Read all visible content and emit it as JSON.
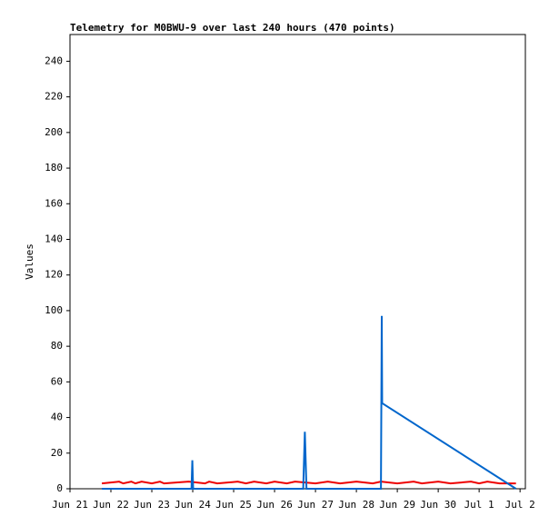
{
  "chart_data": {
    "type": "line",
    "title": "Telemetry for M0BWU-9 over last 240 hours (470 points)",
    "y_label": "Values",
    "xlim": [
      0,
      11.13
    ],
    "xticks": [
      {
        "value": 0,
        "label": "Jun 21"
      },
      {
        "value": 1,
        "label": "Jun 22"
      },
      {
        "value": 2,
        "label": "Jun 23"
      },
      {
        "value": 3,
        "label": "Jun 24"
      },
      {
        "value": 4,
        "label": "Jun 25"
      },
      {
        "value": 5,
        "label": "Jun 26"
      },
      {
        "value": 6,
        "label": "Jun 27"
      },
      {
        "value": 7,
        "label": "Jun 28"
      },
      {
        "value": 8,
        "label": "Jun 29"
      },
      {
        "value": 9,
        "label": "Jun 30"
      },
      {
        "value": 10,
        "label": "Jul 1"
      },
      {
        "value": 11,
        "label": "Jul 2"
      }
    ],
    "ylim": [
      0,
      255
    ],
    "yticks": [
      0,
      20,
      40,
      60,
      80,
      100,
      120,
      140,
      160,
      180,
      200,
      220,
      240
    ],
    "series": [
      {
        "color": "#ee0000",
        "x": [
          0.78,
          1.2,
          1.3,
          1.5,
          1.6,
          1.75,
          2.0,
          2.2,
          2.3,
          2.9,
          3.3,
          3.4,
          3.6,
          4.1,
          4.3,
          4.5,
          4.8,
          5.0,
          5.3,
          5.5,
          6.0,
          6.3,
          6.6,
          7.0,
          7.4,
          7.6,
          8.0,
          8.4,
          8.6,
          9.0,
          9.3,
          9.8,
          10.0,
          10.2,
          10.5,
          10.9
        ],
        "values": [
          3,
          4,
          3,
          4,
          3,
          4,
          3,
          4,
          3,
          4,
          3,
          4,
          3,
          4,
          3,
          4,
          3,
          4,
          3,
          4,
          3,
          4,
          3,
          4,
          3,
          4,
          3,
          4,
          3,
          4,
          3,
          4,
          3,
          4,
          3,
          3
        ]
      },
      {
        "color": "#0066cc",
        "x": [
          0.78,
          2.97,
          2.98,
          2.99,
          3.0,
          3.01,
          5.7,
          5.72,
          5.74,
          5.76,
          5.78,
          7.6,
          7.61,
          7.62,
          7.63,
          10.9
        ],
        "values": [
          0,
          0,
          8,
          16,
          8,
          0,
          0,
          16,
          32,
          16,
          0,
          0,
          48,
          97,
          48,
          0
        ]
      }
    ]
  }
}
